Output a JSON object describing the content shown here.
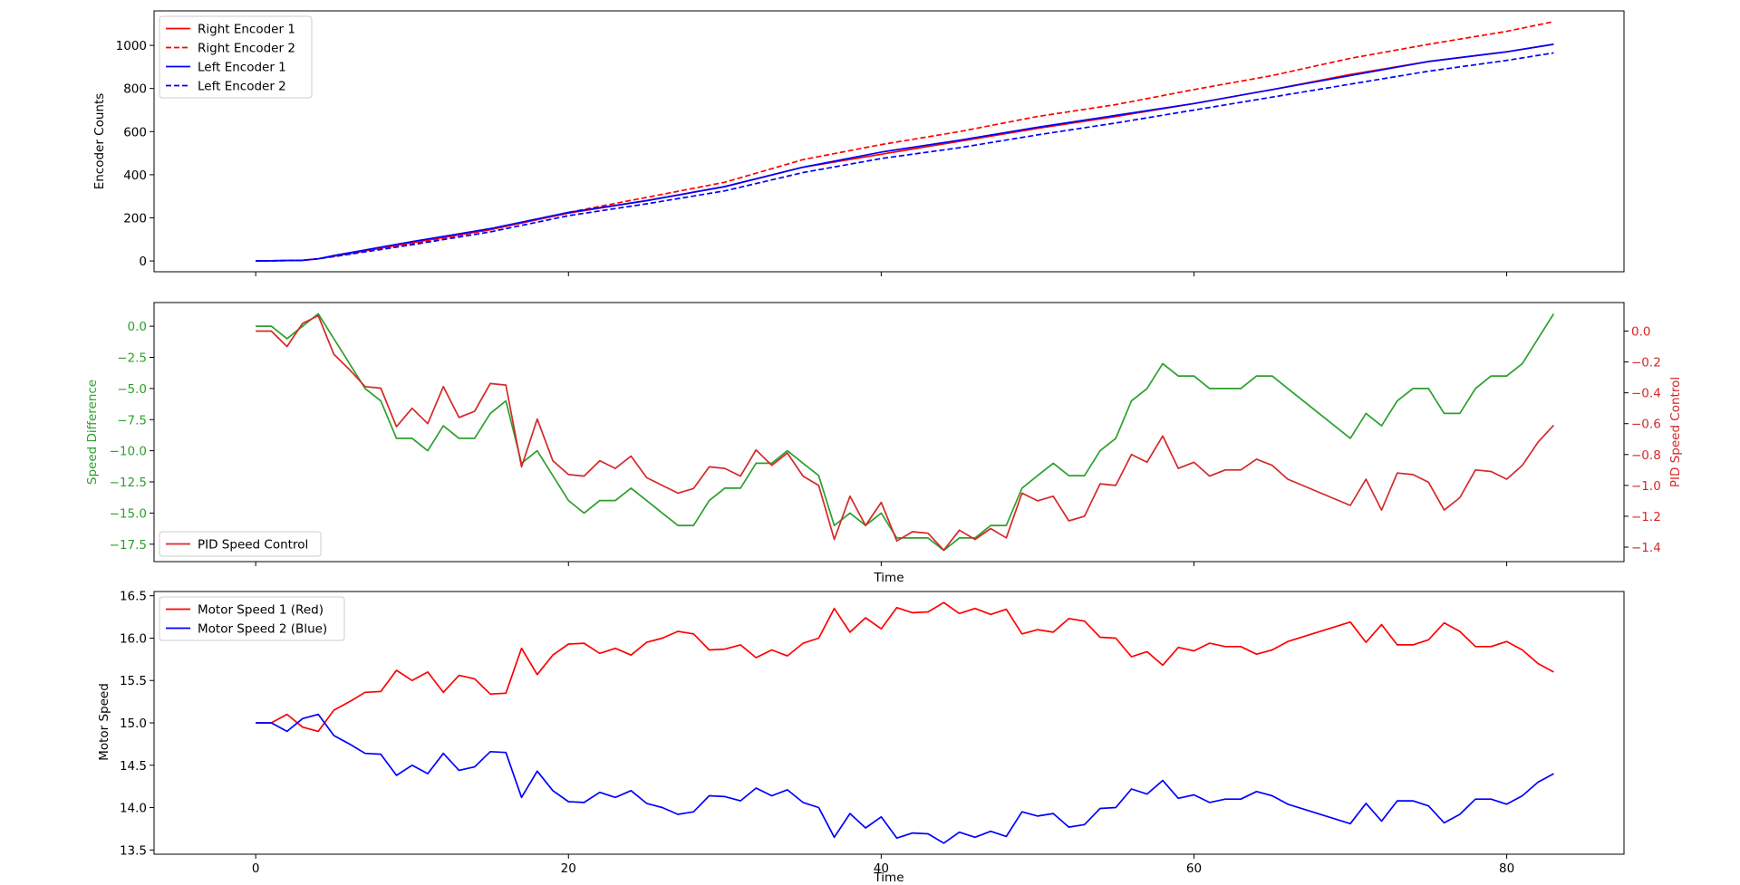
{
  "chart_data": [
    {
      "type": "line",
      "ylabel": "Encoder Counts",
      "xlim": [
        -6.5,
        87.5
      ],
      "ylim": [
        -50,
        1160
      ],
      "xticks": [
        0,
        20,
        40,
        60,
        80
      ],
      "show_xtick_labels": false,
      "yticks": [
        0,
        200,
        400,
        600,
        800,
        1000
      ],
      "ytick_labels": [
        "0",
        "200",
        "400",
        "600",
        "800",
        "1000"
      ],
      "legend_position": "top-left",
      "series": [
        {
          "name": "Right Encoder 1",
          "color": "#ff0000",
          "dash": "solid",
          "x": [
            0,
            3,
            4,
            5,
            10,
            15,
            20,
            25,
            30,
            35,
            40,
            45,
            50,
            55,
            60,
            65,
            70,
            75,
            80,
            83
          ],
          "y": [
            0,
            3,
            10,
            22,
            85,
            145,
            222,
            280,
            345,
            435,
            495,
            555,
            615,
            670,
            730,
            795,
            865,
            925,
            970,
            1005
          ]
        },
        {
          "name": "Right Encoder 2",
          "color": "#ff0000",
          "dash": "dashed",
          "x": [
            0,
            3,
            4,
            5,
            10,
            15,
            20,
            25,
            30,
            35,
            40,
            45,
            50,
            55,
            60,
            65,
            70,
            75,
            80,
            83
          ],
          "y": [
            0,
            3,
            10,
            22,
            80,
            145,
            225,
            295,
            365,
            470,
            540,
            600,
            670,
            725,
            795,
            860,
            940,
            1005,
            1065,
            1110
          ]
        },
        {
          "name": "Left Encoder 1",
          "color": "#0000ff",
          "dash": "solid",
          "x": [
            0,
            3,
            4,
            5,
            10,
            15,
            20,
            25,
            30,
            35,
            40,
            45,
            50,
            55,
            60,
            65,
            70,
            75,
            80,
            83
          ],
          "y": [
            0,
            3,
            10,
            25,
            90,
            150,
            225,
            280,
            345,
            435,
            505,
            560,
            620,
            675,
            730,
            795,
            860,
            925,
            970,
            1005
          ]
        },
        {
          "name": "Left Encoder 2",
          "color": "#0000ff",
          "dash": "dashed",
          "x": [
            0,
            3,
            4,
            5,
            10,
            15,
            20,
            25,
            30,
            35,
            40,
            45,
            50,
            55,
            60,
            65,
            70,
            75,
            80,
            83
          ],
          "y": [
            0,
            3,
            10,
            20,
            75,
            135,
            210,
            265,
            325,
            410,
            475,
            525,
            585,
            640,
            700,
            760,
            820,
            880,
            930,
            965
          ]
        }
      ]
    },
    {
      "type": "line",
      "xlabel": "Time",
      "ylabel": "Speed Difference",
      "ylabel_right": "PID Speed Control",
      "xlim": [
        -6.5,
        87.5
      ],
      "ylim": [
        -18.9,
        1.9
      ],
      "ylim_right": [
        -1.494,
        0.185
      ],
      "xticks": [
        0,
        20,
        40,
        60,
        80
      ],
      "show_xtick_labels": false,
      "yticks": [
        0,
        -2.5,
        -5,
        -7.5,
        -10,
        -12.5,
        -15,
        -17.5
      ],
      "ytick_labels": [
        "0.0",
        "−2.5",
        "−5.0",
        "−7.5",
        "−10.0",
        "−12.5",
        "−15.0",
        "−17.5"
      ],
      "yticks_right": [
        0,
        -0.2,
        -0.4,
        -0.6,
        -0.8,
        -1.0,
        -1.2,
        -1.4
      ],
      "ytick_labels_right": [
        "0.0",
        "−0.2",
        "−0.4",
        "−0.6",
        "−0.8",
        "−1.0",
        "−1.2",
        "−1.4"
      ],
      "legend_position": "bottom-left",
      "series": [
        {
          "name": "Speed Difference",
          "axis": "left",
          "color": "#2ca02c",
          "x": [
            0,
            1,
            2,
            3,
            4,
            5,
            6,
            7,
            8,
            9,
            10,
            11,
            12,
            13,
            14,
            15,
            16,
            17,
            18,
            19,
            20,
            21,
            22,
            23,
            24,
            25,
            26,
            27,
            28,
            29,
            30,
            31,
            32,
            33,
            34,
            35,
            36,
            37,
            38,
            39,
            40,
            41,
            42,
            43,
            44,
            45,
            46,
            47,
            48,
            49,
            50,
            51,
            52,
            53,
            54,
            55,
            56,
            57,
            58,
            59,
            60,
            61,
            62,
            63,
            64,
            65,
            66,
            70,
            71,
            72,
            73,
            74,
            75,
            76,
            77,
            78,
            79,
            80,
            81,
            83
          ],
          "y": [
            0,
            0,
            -1,
            0,
            1,
            -1,
            -3,
            -5,
            -6,
            -9,
            -9,
            -10,
            -8,
            -9,
            -9,
            -7,
            -6,
            -11,
            -10,
            -12,
            -14,
            -15,
            -14,
            -14,
            -13,
            -14,
            -15,
            -16,
            -16,
            -14,
            -13,
            -13,
            -11,
            -11,
            -10,
            -11,
            -12,
            -16,
            -15,
            -16,
            -15,
            -17,
            -17,
            -17,
            -18,
            -17,
            -17,
            -16,
            -16,
            -13,
            -12,
            -11,
            -12,
            -12,
            -10,
            -9,
            -6,
            -5,
            -3,
            -4,
            -4,
            -5,
            -5,
            -5,
            -4,
            -4,
            -5,
            -9,
            -7,
            -8,
            -6,
            -5,
            -5,
            -7,
            -7,
            -5,
            -4,
            -4,
            -3,
            1
          ]
        },
        {
          "name": "PID Speed Control",
          "axis": "right",
          "color": "#d62728",
          "x": [
            0,
            1,
            2,
            3,
            4,
            5,
            6,
            7,
            8,
            9,
            10,
            11,
            12,
            13,
            14,
            15,
            16,
            17,
            18,
            19,
            20,
            21,
            22,
            23,
            24,
            25,
            26,
            27,
            28,
            29,
            30,
            31,
            32,
            33,
            34,
            35,
            36,
            37,
            38,
            39,
            40,
            41,
            42,
            43,
            44,
            45,
            46,
            47,
            48,
            49,
            50,
            51,
            52,
            53,
            54,
            55,
            56,
            57,
            58,
            59,
            60,
            61,
            62,
            63,
            64,
            65,
            66,
            70,
            71,
            72,
            73,
            74,
            75,
            76,
            77,
            78,
            79,
            80,
            81,
            82,
            83
          ],
          "y": [
            0.0,
            0.0,
            -0.1,
            0.05,
            0.1,
            -0.15,
            -0.25,
            -0.36,
            -0.37,
            -0.62,
            -0.5,
            -0.6,
            -0.36,
            -0.56,
            -0.52,
            -0.34,
            -0.35,
            -0.88,
            -0.57,
            -0.84,
            -0.93,
            -0.94,
            -0.84,
            -0.89,
            -0.81,
            -0.95,
            -1.0,
            -1.05,
            -1.02,
            -0.88,
            -0.89,
            -0.94,
            -0.77,
            -0.87,
            -0.79,
            -0.94,
            -1.0,
            -1.35,
            -1.07,
            -1.26,
            -1.11,
            -1.36,
            -1.3,
            -1.31,
            -1.42,
            -1.29,
            -1.35,
            -1.28,
            -1.34,
            -1.05,
            -1.1,
            -1.07,
            -1.23,
            -1.2,
            -0.99,
            -1.0,
            -0.8,
            -0.85,
            -0.68,
            -0.89,
            -0.85,
            -0.94,
            -0.9,
            -0.9,
            -0.83,
            -0.87,
            -0.96,
            -1.13,
            -0.96,
            -1.16,
            -0.92,
            -0.93,
            -0.98,
            -1.16,
            -1.08,
            -0.9,
            -0.91,
            -0.96,
            -0.87,
            -0.72,
            -0.61
          ]
        }
      ]
    },
    {
      "type": "line",
      "xlabel": "Time",
      "ylabel": "Motor Speed",
      "xlim": [
        -6.5,
        87.5
      ],
      "ylim": [
        13.45,
        16.55
      ],
      "xticks": [
        0,
        20,
        40,
        60,
        80
      ],
      "show_xtick_labels": true,
      "xtick_labels": [
        "0",
        "20",
        "40",
        "60",
        "80"
      ],
      "yticks": [
        13.5,
        14.0,
        14.5,
        15.0,
        15.5,
        16.0,
        16.5
      ],
      "ytick_labels": [
        "13.5",
        "14.0",
        "14.5",
        "15.0",
        "15.5",
        "16.0",
        "16.5"
      ],
      "legend_position": "top-left",
      "series": [
        {
          "name": "Motor Speed 1 (Red)",
          "color": "#ff0000",
          "x": [
            0,
            1,
            2,
            3,
            4,
            5,
            6,
            7,
            8,
            9,
            10,
            11,
            12,
            13,
            14,
            15,
            16,
            17,
            18,
            19,
            20,
            21,
            22,
            23,
            24,
            25,
            26,
            27,
            28,
            29,
            30,
            31,
            32,
            33,
            34,
            35,
            36,
            37,
            38,
            39,
            40,
            41,
            42,
            43,
            44,
            45,
            46,
            47,
            48,
            49,
            50,
            51,
            52,
            53,
            54,
            55,
            56,
            57,
            58,
            59,
            60,
            61,
            62,
            63,
            64,
            65,
            66,
            70,
            71,
            72,
            73,
            74,
            75,
            76,
            77,
            78,
            79,
            80,
            81,
            82,
            83
          ],
          "y": [
            15.0,
            15.0,
            15.1,
            14.95,
            14.9,
            15.15,
            15.25,
            15.36,
            15.37,
            15.62,
            15.5,
            15.6,
            15.36,
            15.56,
            15.52,
            15.34,
            15.35,
            15.88,
            15.57,
            15.8,
            15.93,
            15.94,
            15.82,
            15.88,
            15.8,
            15.95,
            16.0,
            16.08,
            16.05,
            15.86,
            15.87,
            15.92,
            15.77,
            15.86,
            15.79,
            15.94,
            16.0,
            16.35,
            16.07,
            16.24,
            16.11,
            16.36,
            16.3,
            16.31,
            16.42,
            16.29,
            16.35,
            16.28,
            16.34,
            16.05,
            16.1,
            16.07,
            16.23,
            16.2,
            16.01,
            16.0,
            15.78,
            15.84,
            15.68,
            15.89,
            15.85,
            15.94,
            15.9,
            15.9,
            15.81,
            15.86,
            15.96,
            16.19,
            15.95,
            16.16,
            15.92,
            15.92,
            15.98,
            16.18,
            16.08,
            15.9,
            15.9,
            15.96,
            15.86,
            15.7,
            15.6
          ]
        },
        {
          "name": "Motor Speed 2 (Blue)",
          "color": "#0000ff",
          "x": [
            0,
            1,
            2,
            3,
            4,
            5,
            6,
            7,
            8,
            9,
            10,
            11,
            12,
            13,
            14,
            15,
            16,
            17,
            18,
            19,
            20,
            21,
            22,
            23,
            24,
            25,
            26,
            27,
            28,
            29,
            30,
            31,
            32,
            33,
            34,
            35,
            36,
            37,
            38,
            39,
            40,
            41,
            42,
            43,
            44,
            45,
            46,
            47,
            48,
            49,
            50,
            51,
            52,
            53,
            54,
            55,
            56,
            57,
            58,
            59,
            60,
            61,
            62,
            63,
            64,
            65,
            66,
            70,
            71,
            72,
            73,
            74,
            75,
            76,
            77,
            78,
            79,
            80,
            81,
            82,
            83
          ],
          "y": [
            15.0,
            15.0,
            14.9,
            15.05,
            15.1,
            14.85,
            14.75,
            14.64,
            14.63,
            14.38,
            14.5,
            14.4,
            14.64,
            14.44,
            14.48,
            14.66,
            14.65,
            14.12,
            14.43,
            14.2,
            14.07,
            14.06,
            14.18,
            14.12,
            14.2,
            14.05,
            14.0,
            13.92,
            13.95,
            14.14,
            14.13,
            14.08,
            14.23,
            14.14,
            14.21,
            14.06,
            14.0,
            13.65,
            13.93,
            13.76,
            13.89,
            13.64,
            13.7,
            13.69,
            13.58,
            13.71,
            13.65,
            13.72,
            13.66,
            13.95,
            13.9,
            13.93,
            13.77,
            13.8,
            13.99,
            14.0,
            14.22,
            14.16,
            14.32,
            14.11,
            14.15,
            14.06,
            14.1,
            14.1,
            14.19,
            14.14,
            14.04,
            13.81,
            14.05,
            13.84,
            14.08,
            14.08,
            14.02,
            13.82,
            13.92,
            14.1,
            14.1,
            14.04,
            14.14,
            14.3,
            14.4
          ]
        }
      ]
    }
  ]
}
